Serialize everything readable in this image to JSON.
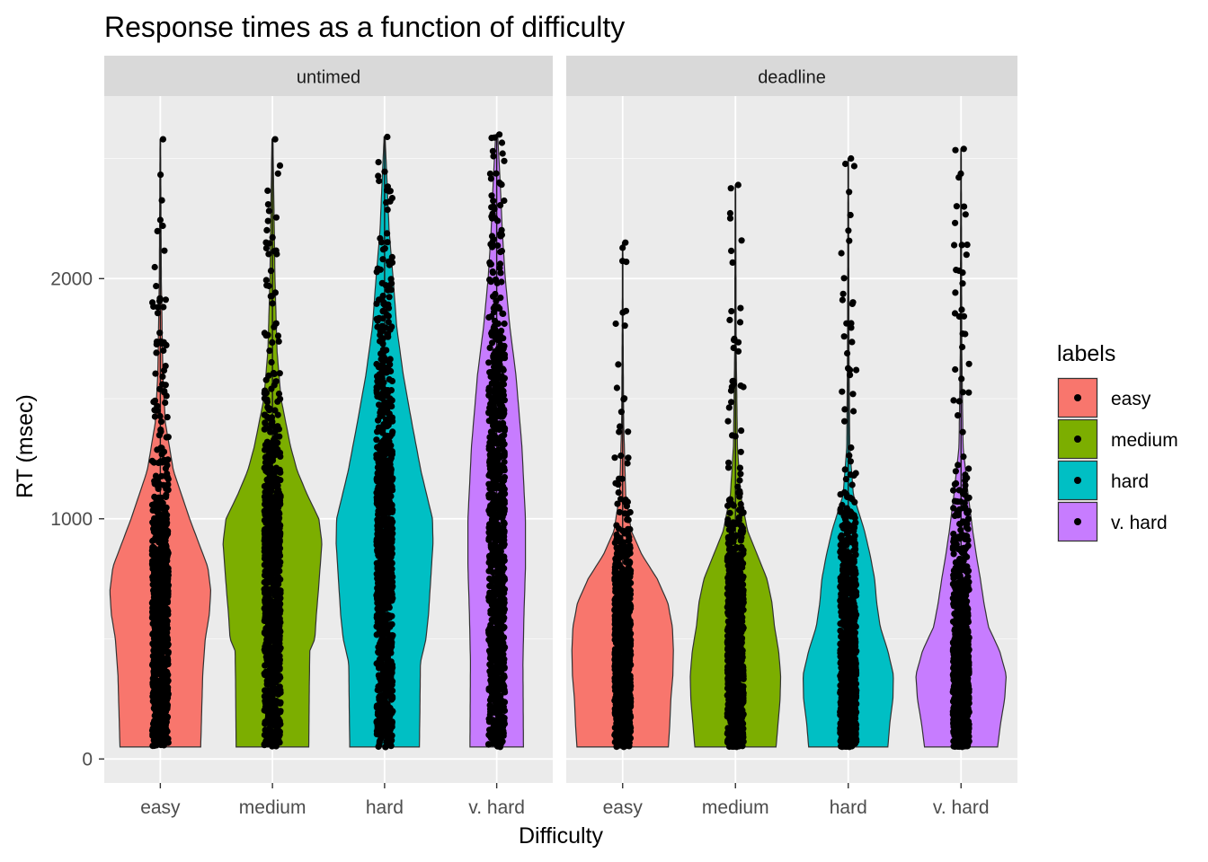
{
  "chart_data": {
    "type": "violin",
    "title": "Response times as a function of difficulty",
    "xlabel": "Difficulty",
    "ylabel": "RT (msec)",
    "ylim": [
      -100,
      2760
    ],
    "yticks": [
      0,
      1000,
      2000
    ],
    "categories": [
      "easy",
      "medium",
      "hard",
      "v. hard"
    ],
    "colors": [
      "#F8766D",
      "#7CAE00",
      "#00BFC4",
      "#C77CFF"
    ],
    "panels": [
      {
        "name": "untimed",
        "series": [
          {
            "category": "easy",
            "min": 50,
            "max": 2580,
            "profile": [
              [
                50,
                0.8
              ],
              [
                200,
                0.82
              ],
              [
                350,
                0.84
              ],
              [
                500,
                0.89
              ],
              [
                600,
                0.97
              ],
              [
                700,
                1.0
              ],
              [
                800,
                0.94
              ],
              [
                900,
                0.76
              ],
              [
                1000,
                0.58
              ],
              [
                1200,
                0.26
              ],
              [
                1400,
                0.1
              ],
              [
                1600,
                0.05
              ],
              [
                2000,
                0.02
              ],
              [
                2580,
                0.005
              ]
            ]
          },
          {
            "category": "medium",
            "min": 50,
            "max": 2580,
            "profile": [
              [
                50,
                0.72
              ],
              [
                300,
                0.73
              ],
              [
                450,
                0.74
              ],
              [
                500,
                0.84
              ],
              [
                600,
                0.87
              ],
              [
                700,
                0.91
              ],
              [
                900,
                0.98
              ],
              [
                1000,
                0.92
              ],
              [
                1100,
                0.69
              ],
              [
                1200,
                0.49
              ],
              [
                1300,
                0.36
              ],
              [
                1500,
                0.17
              ],
              [
                1700,
                0.09
              ],
              [
                2000,
                0.05
              ],
              [
                2300,
                0.03
              ],
              [
                2580,
                0.01
              ]
            ]
          },
          {
            "category": "hard",
            "min": 50,
            "max": 2590,
            "profile": [
              [
                50,
                0.69
              ],
              [
                200,
                0.7
              ],
              [
                400,
                0.71
              ],
              [
                500,
                0.82
              ],
              [
                600,
                0.87
              ],
              [
                700,
                0.9
              ],
              [
                900,
                0.96
              ],
              [
                1000,
                0.95
              ],
              [
                1200,
                0.72
              ],
              [
                1400,
                0.54
              ],
              [
                1600,
                0.37
              ],
              [
                1800,
                0.24
              ],
              [
                2000,
                0.17
              ],
              [
                2200,
                0.09
              ],
              [
                2400,
                0.05
              ],
              [
                2590,
                0.01
              ]
            ]
          },
          {
            "category": "v. hard",
            "min": 50,
            "max": 2600,
            "profile": [
              [
                50,
                0.53
              ],
              [
                400,
                0.52
              ],
              [
                600,
                0.54
              ],
              [
                800,
                0.57
              ],
              [
                1000,
                0.57
              ],
              [
                1300,
                0.5
              ],
              [
                1600,
                0.38
              ],
              [
                1800,
                0.26
              ],
              [
                2000,
                0.17
              ],
              [
                2200,
                0.11
              ],
              [
                2400,
                0.07
              ],
              [
                2600,
                0.02
              ]
            ]
          }
        ]
      },
      {
        "name": "deadline",
        "series": [
          {
            "category": "easy",
            "min": 50,
            "max": 2150,
            "profile": [
              [
                50,
                0.9
              ],
              [
                150,
                0.93
              ],
              [
                250,
                0.95
              ],
              [
                350,
                0.99
              ],
              [
                450,
                1.0
              ],
              [
                550,
                0.98
              ],
              [
                650,
                0.89
              ],
              [
                750,
                0.68
              ],
              [
                850,
                0.38
              ],
              [
                950,
                0.17
              ],
              [
                1100,
                0.06
              ],
              [
                1400,
                0.02
              ],
              [
                1800,
                0.008
              ],
              [
                2150,
                0.005
              ]
            ]
          },
          {
            "category": "medium",
            "min": 50,
            "max": 2390,
            "profile": [
              [
                50,
                0.8
              ],
              [
                150,
                0.84
              ],
              [
                250,
                0.88
              ],
              [
                350,
                0.89
              ],
              [
                450,
                0.85
              ],
              [
                550,
                0.77
              ],
              [
                650,
                0.72
              ],
              [
                750,
                0.62
              ],
              [
                850,
                0.43
              ],
              [
                950,
                0.24
              ],
              [
                1100,
                0.1
              ],
              [
                1300,
                0.04
              ],
              [
                1700,
                0.015
              ],
              [
                2390,
                0.005
              ]
            ]
          },
          {
            "category": "hard",
            "min": 50,
            "max": 2500,
            "profile": [
              [
                50,
                0.78
              ],
              [
                150,
                0.82
              ],
              [
                250,
                0.88
              ],
              [
                350,
                0.89
              ],
              [
                450,
                0.78
              ],
              [
                550,
                0.63
              ],
              [
                650,
                0.56
              ],
              [
                750,
                0.52
              ],
              [
                850,
                0.43
              ],
              [
                950,
                0.32
              ],
              [
                1100,
                0.1
              ],
              [
                1300,
                0.03
              ],
              [
                1700,
                0.015
              ],
              [
                2500,
                0.005
              ]
            ]
          },
          {
            "category": "v. hard",
            "min": 50,
            "max": 2540,
            "profile": [
              [
                50,
                0.72
              ],
              [
                150,
                0.78
              ],
              [
                250,
                0.86
              ],
              [
                350,
                0.89
              ],
              [
                450,
                0.76
              ],
              [
                550,
                0.54
              ],
              [
                650,
                0.45
              ],
              [
                750,
                0.38
              ],
              [
                850,
                0.3
              ],
              [
                950,
                0.23
              ],
              [
                1100,
                0.14
              ],
              [
                1300,
                0.04
              ],
              [
                1700,
                0.015
              ],
              [
                2540,
                0.005
              ]
            ]
          }
        ]
      }
    ],
    "legend": {
      "title": "labels",
      "placement": "right",
      "entries": [
        "easy",
        "medium",
        "hard",
        "v. hard"
      ]
    }
  }
}
